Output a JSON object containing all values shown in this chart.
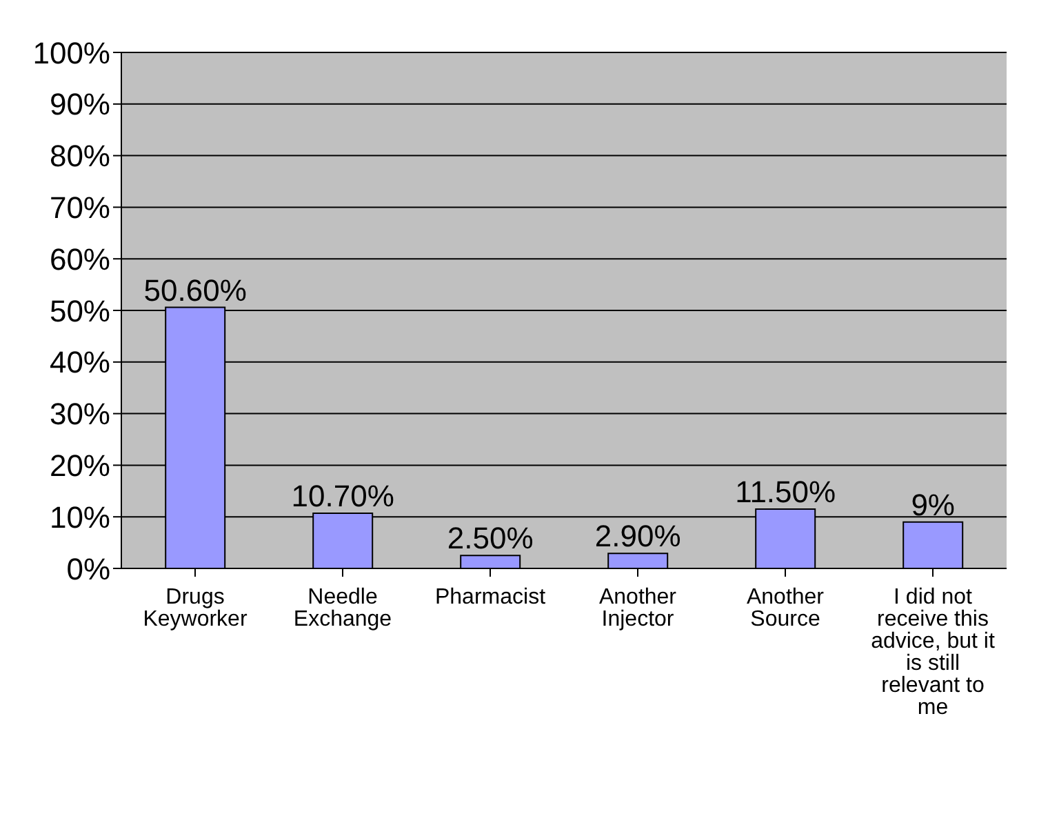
{
  "chart_data": {
    "type": "bar",
    "categories": [
      "Drugs Keyworker",
      "Needle Exchange",
      "Pharmacist",
      "Another Injector",
      "Another Source",
      "I did not receive this advice, but it is still relevant to me"
    ],
    "values": [
      50.6,
      10.7,
      2.5,
      2.9,
      11.5,
      9
    ],
    "value_labels": [
      "50.60%",
      "10.70%",
      "2.50%",
      "2.90%",
      "11.50%",
      "9%"
    ],
    "color": "#9999ff",
    "ylim": [
      0,
      100
    ],
    "yticks": [
      {
        "value": 0,
        "label": "0%"
      },
      {
        "value": 10,
        "label": "10%"
      },
      {
        "value": 20,
        "label": "20%"
      },
      {
        "value": 30,
        "label": "30%"
      },
      {
        "value": 40,
        "label": "40%"
      },
      {
        "value": 50,
        "label": "50%"
      },
      {
        "value": 60,
        "label": "60%"
      },
      {
        "value": 70,
        "label": "70%"
      },
      {
        "value": 80,
        "label": "80%"
      },
      {
        "value": 90,
        "label": "90%"
      },
      {
        "value": 100,
        "label": "100%"
      }
    ],
    "grid": "y",
    "legend": false
  }
}
